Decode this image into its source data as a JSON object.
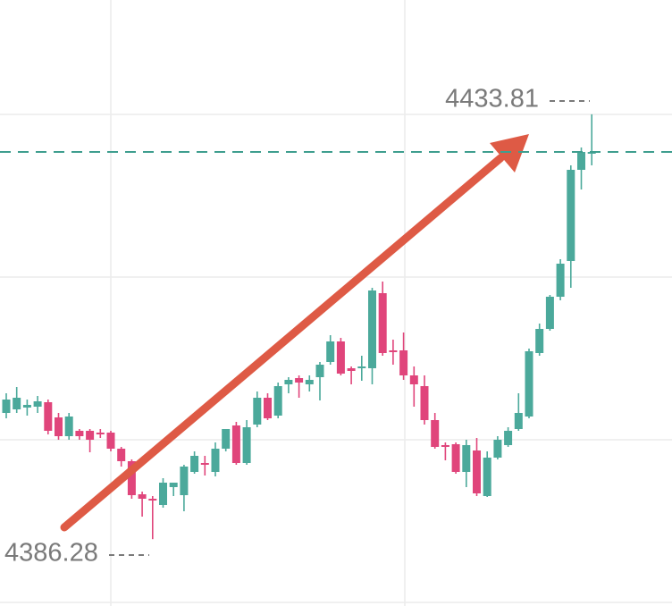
{
  "chart_data": {
    "type": "candlestick",
    "open": [
      4400.4,
      4400.8,
      4401.0,
      4401.1,
      4401.6,
      4399.9,
      4397.8,
      4398.4,
      4398.4,
      4398.2,
      4398.2,
      4396.4,
      4395.0,
      4391.3,
      4390.8,
      4390.1,
      4392.1,
      4391.2,
      4393.8,
      4394.8,
      4393.8,
      4396.4,
      4399.0,
      4394.8,
      4399.1,
      4402.1,
      4400.1,
      4403.6,
      4404.3,
      4403.6,
      4404.4,
      4406.1,
      4408.4,
      4405.4,
      4405.4,
      4405.4,
      4413.8,
      4407.4,
      4407.4,
      4404.6,
      4403.4,
      4399.6,
      4396.8,
      4396.9,
      4393.8,
      4396.2,
      4391.1,
      4395.4,
      4396.8,
      4398.6,
      4400.0,
      4407.1,
      4409.8,
      4413.4,
      4417.4,
      4427.6,
      4429.4
    ],
    "high": [
      4402.6,
      4403.3,
      4401.9,
      4402.3,
      4401.9,
      4400.4,
      4400.4,
      4398.6,
      4398.6,
      4398.6,
      4398.4,
      4396.6,
      4395.2,
      4391.6,
      4391.1,
      4393.1,
      4392.6,
      4394.6,
      4396.1,
      4395.6,
      4397.1,
      4398.6,
      4399.4,
      4399.6,
      4402.8,
      4402.6,
      4403.8,
      4404.4,
      4404.6,
      4404.6,
      4406.1,
      4409.1,
      4408.8,
      4405.6,
      4406.8,
      4414.4,
      4415.1,
      4408.6,
      4409.4,
      4405.6,
      4404.6,
      4400.4,
      4397.1,
      4397.1,
      4397.4,
      4397.6,
      4396.1,
      4397.8,
      4398.8,
      4402.6,
      4407.6,
      4410.4,
      4413.6,
      4417.6,
      4428.1,
      4430.1,
      4433.81
    ],
    "low": [
      4399.8,
      4400.4,
      4400.1,
      4400.4,
      4398.0,
      4397.4,
      4397.4,
      4397.4,
      4396.0,
      4397.6,
      4396.1,
      4394.4,
      4390.8,
      4388.8,
      4386.28,
      4389.8,
      4391.1,
      4389.4,
      4393.6,
      4393.4,
      4393.3,
      4396.1,
      4394.6,
      4394.6,
      4398.8,
      4399.6,
      4399.8,
      4402.6,
      4402.1,
      4402.8,
      4401.8,
      4405.8,
      4404.6,
      4403.6,
      4404.0,
      4403.6,
      4406.8,
      4405.8,
      4404.1,
      4401.1,
      4399.1,
      4396.4,
      4395.1,
      4393.6,
      4392.1,
      4391.1,
      4391.0,
      4395.2,
      4396.6,
      4398.4,
      4399.8,
      4406.8,
      4409.6,
      4413.0,
      4414.4,
      4425.4,
      4428.1
    ],
    "close": [
      4401.9,
      4402.1,
      4401.3,
      4401.7,
      4398.4,
      4397.8,
      4400.0,
      4397.8,
      4397.4,
      4398.0,
      4396.4,
      4395.0,
      4391.2,
      4390.8,
      4390.6,
      4392.6,
      4392.6,
      4394.4,
      4395.6,
      4394.6,
      4396.4,
      4398.6,
      4394.8,
      4398.8,
      4402.1,
      4399.8,
      4403.4,
      4404.1,
      4403.8,
      4404.1,
      4405.8,
      4408.4,
      4404.8,
      4405.1,
      4405.6,
      4414.1,
      4407.1,
      4407.2,
      4404.6,
      4403.6,
      4399.6,
      4396.6,
      4396.6,
      4393.8,
      4396.8,
      4391.4,
      4395.4,
      4397.4,
      4398.4,
      4400.4,
      4407.3,
      4409.8,
      4413.4,
      4417.1,
      4427.6,
      4429.6,
      4429.6
    ],
    "up_color": "#4ba99b",
    "down_color": "#e0457b",
    "price_line_color": "#3f9e8f",
    "ylim": [
      4378.8,
      4446.6
    ]
  }
}
